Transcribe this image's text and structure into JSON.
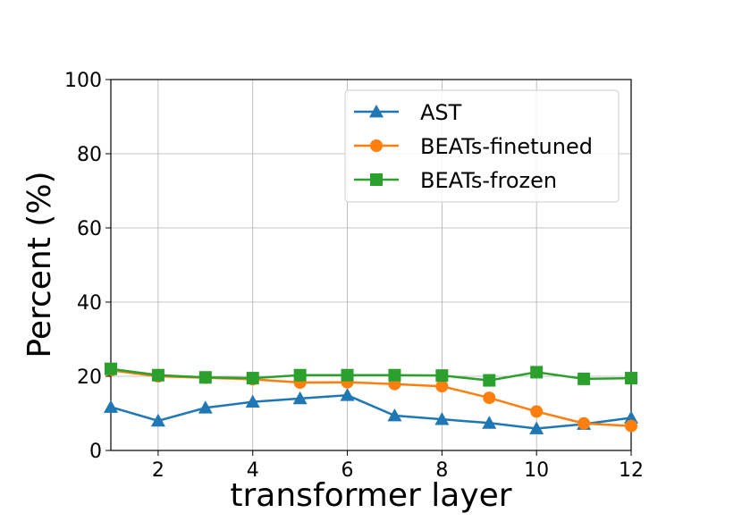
{
  "chart_data": {
    "type": "line",
    "xlabel": "transformer layer",
    "ylabel": "Percent (%)",
    "xlim": [
      1,
      12
    ],
    "ylim": [
      0,
      100
    ],
    "xticks": [
      "2",
      "4",
      "6",
      "8",
      "10",
      "12"
    ],
    "yticks": [
      "0",
      "20",
      "40",
      "60",
      "80",
      "100"
    ],
    "grid": true,
    "legend_position": "top-right",
    "x": [
      1,
      2,
      3,
      4,
      5,
      6,
      7,
      8,
      9,
      10,
      11,
      12
    ],
    "series": [
      {
        "name": "AST",
        "color": "#1f77b4",
        "marker": "triangle",
        "values": [
          11.7,
          8.0,
          11.5,
          13.1,
          14.0,
          14.9,
          9.4,
          8.4,
          7.4,
          5.9,
          7.1,
          8.8
        ]
      },
      {
        "name": "BEATs-finetuned",
        "color": "#ff7f0e",
        "marker": "circle",
        "values": [
          21.6,
          20.0,
          19.6,
          19.2,
          18.3,
          18.4,
          17.9,
          17.3,
          14.2,
          10.5,
          7.3,
          6.6
        ]
      },
      {
        "name": "BEATs-frozen",
        "color": "#2ca02c",
        "marker": "square",
        "values": [
          22.0,
          20.3,
          19.7,
          19.5,
          20.3,
          20.3,
          20.3,
          20.2,
          18.9,
          21.1,
          19.3,
          19.5
        ]
      }
    ]
  }
}
